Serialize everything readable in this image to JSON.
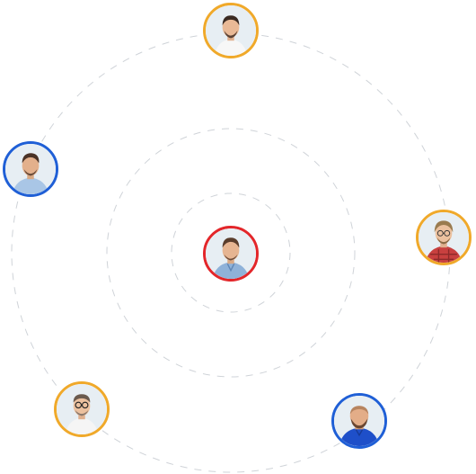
{
  "colors": {
    "orange": "#f0a92a",
    "blue": "#1f5fd6",
    "red": "#e3262a",
    "ring": "#cfd3d8"
  },
  "avatars": [
    {
      "id": "top",
      "ring": "orange",
      "icon": "avatar-man-white-shirt"
    },
    {
      "id": "left",
      "ring": "blue",
      "icon": "avatar-man-light-blue-shirt"
    },
    {
      "id": "right",
      "ring": "orange",
      "icon": "avatar-man-red-plaid-shirt"
    },
    {
      "id": "bottom-left",
      "ring": "orange",
      "icon": "avatar-man-glasses-white-shirt"
    },
    {
      "id": "bottom-right",
      "ring": "blue",
      "icon": "avatar-man-blue-polo"
    },
    {
      "id": "center",
      "ring": "red",
      "icon": "avatar-man-denim-shirt"
    }
  ]
}
